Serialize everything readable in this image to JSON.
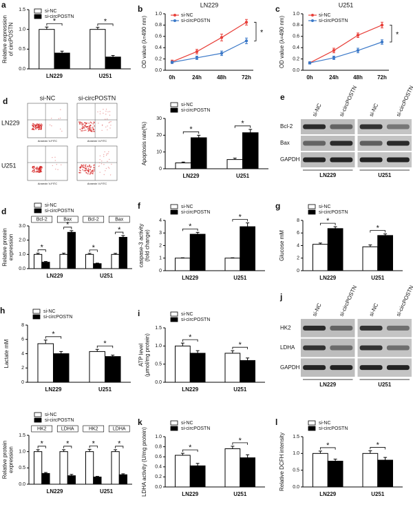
{
  "chart_data": [
    {
      "type": "bar",
      "panel": "a",
      "ylabel": [
        "Relative expression",
        "of circPOSTN"
      ],
      "categories": [
        "LN229",
        "U251"
      ],
      "legend": "upper left",
      "series": [
        {
          "name": "si-NC",
          "color": "#ffffff",
          "values": [
            1.0,
            1.0
          ],
          "errors": [
            0.06,
            0.05
          ]
        },
        {
          "name": "si-circPOSTN",
          "color": "#000000",
          "values": [
            0.4,
            0.3
          ],
          "errors": [
            0.05,
            0.04
          ]
        }
      ],
      "significance": [
        "*",
        "*"
      ],
      "ylim": [
        0,
        1.5
      ],
      "yticks": [
        {
          "value": 0,
          "label": "0.0"
        },
        {
          "value": 0.5,
          "label": "0.5"
        },
        {
          "value": 1,
          "label": "1.0"
        },
        {
          "value": 1.5,
          "label": "1.5"
        }
      ]
    },
    {
      "type": "line",
      "panel": "b",
      "title": "LN229",
      "ylabel": [
        "OD value (λ=490 nm)"
      ],
      "categories": [
        "0h",
        "24h",
        "48h",
        "72h"
      ],
      "legend": "upper left",
      "series": [
        {
          "name": "si-NC",
          "color": "#e8403a",
          "values": [
            0.15,
            0.33,
            0.58,
            0.85
          ],
          "errors": [
            0.03,
            0.04,
            0.06,
            0.05
          ]
        },
        {
          "name": "si-circPOSTN",
          "color": "#3a78c8",
          "values": [
            0.14,
            0.22,
            0.3,
            0.52
          ],
          "errors": [
            0.02,
            0.03,
            0.04,
            0.05
          ]
        }
      ],
      "significance": [
        "*"
      ],
      "ylim": [
        0,
        1.0
      ],
      "yticks": [
        {
          "value": 0,
          "label": "0.0"
        },
        0.2,
        0.4,
        0.6,
        0.8,
        {
          "value": 1,
          "label": "1.0"
        }
      ]
    },
    {
      "type": "line",
      "panel": "c",
      "title": "U251",
      "ylabel": [
        "OD value (λ=490 nm)"
      ],
      "categories": [
        "0h",
        "24h",
        "48h",
        "72h"
      ],
      "legend": "upper left",
      "series": [
        {
          "name": "si-NC",
          "color": "#e8403a",
          "values": [
            0.13,
            0.35,
            0.62,
            0.8
          ],
          "errors": [
            0.02,
            0.04,
            0.04,
            0.05
          ]
        },
        {
          "name": "si-circPOSTN",
          "color": "#3a78c8",
          "values": [
            0.13,
            0.22,
            0.35,
            0.5
          ],
          "errors": [
            0.02,
            0.03,
            0.04,
            0.04
          ]
        }
      ],
      "significance": [
        "*"
      ],
      "ylim": [
        0,
        1.0
      ],
      "yticks": [
        {
          "value": 0,
          "label": "0.0"
        },
        0.2,
        0.4,
        0.6,
        0.8,
        {
          "value": 1,
          "label": "1.0"
        }
      ]
    },
    {
      "type": "bar",
      "ylabel": [
        "Apoptosis rate(%)"
      ],
      "categories": [
        "LN229",
        "U251"
      ],
      "legend": "above",
      "series": [
        {
          "name": "si-NC",
          "color": "#ffffff",
          "values": [
            3.5,
            5.5
          ],
          "errors": [
            0.5,
            0.8
          ]
        },
        {
          "name": "si-circPOSTN",
          "color": "#000000",
          "values": [
            18.5,
            21.5
          ],
          "errors": [
            1.5,
            2
          ]
        }
      ],
      "significance": [
        "*",
        "*"
      ],
      "ylim": [
        0,
        30
      ],
      "yticks": [
        0,
        10,
        20,
        30
      ]
    },
    {
      "type": "bar",
      "panel": "d",
      "ylabel": [
        "Relative protein",
        "expression"
      ],
      "categories": [
        "Bcl-2",
        "Bax",
        "Bcl-2",
        "Bax"
      ],
      "groups": [
        "LN229",
        "U251"
      ],
      "legend": "above",
      "series": [
        {
          "name": "si-NC",
          "color": "#ffffff",
          "values": [
            1.0,
            1.0,
            1.0,
            1.0
          ],
          "errors": [
            0.08,
            0.08,
            0.07,
            0.07
          ]
        },
        {
          "name": "si-circPOSTN",
          "color": "#000000",
          "values": [
            0.45,
            2.55,
            0.35,
            2.2
          ],
          "errors": [
            0.05,
            0.12,
            0.04,
            0.12
          ]
        }
      ],
      "significance": [
        "*",
        "*",
        "*",
        "*"
      ],
      "ylim": [
        0,
        3
      ],
      "yticks": [
        {
          "value": 0,
          "label": "0.0"
        },
        {
          "value": 1,
          "label": "1.0"
        },
        {
          "value": 2,
          "label": "2.0"
        },
        {
          "value": 3,
          "label": "3.0"
        }
      ]
    },
    {
      "type": "bar",
      "panel": "f",
      "ylabel": [
        "caspase-3 activity",
        "(fold change)"
      ],
      "categories": [
        "LN229",
        "U251"
      ],
      "legend": "above",
      "series": [
        {
          "name": "si-NC",
          "color": "#ffffff",
          "values": [
            1.0,
            1.0
          ],
          "errors": [
            0.03,
            0.03
          ]
        },
        {
          "name": "si-circPOSTN",
          "color": "#000000",
          "values": [
            2.9,
            3.5
          ],
          "errors": [
            0.15,
            0.3
          ]
        }
      ],
      "significance": [
        "*",
        "*"
      ],
      "ylim": [
        0,
        4
      ],
      "yticks": [
        0,
        1,
        2,
        3,
        4
      ]
    },
    {
      "type": "bar",
      "panel": "g",
      "ylabel": [
        "Glucose mM"
      ],
      "categories": [
        "LN229",
        "U251"
      ],
      "legend": "above",
      "series": [
        {
          "name": "si-NC",
          "color": "#ffffff",
          "values": [
            4.2,
            3.8
          ],
          "errors": [
            0.2,
            0.3
          ]
        },
        {
          "name": "si-circPOSTN",
          "color": "#000000",
          "values": [
            6.7,
            5.6
          ],
          "errors": [
            0.3,
            0.25
          ]
        }
      ],
      "significance": [
        "*",
        "*"
      ],
      "ylim": [
        0,
        8
      ],
      "yticks": [
        0,
        2,
        4,
        6,
        8
      ]
    },
    {
      "type": "bar",
      "panel": "h",
      "ylabel": [
        "Lactate mM"
      ],
      "categories": [
        "LN229",
        "U251"
      ],
      "legend": "above",
      "series": [
        {
          "name": "si-NC",
          "color": "#ffffff",
          "values": [
            5.4,
            4.3
          ],
          "errors": [
            0.5,
            0.3
          ]
        },
        {
          "name": "si-circPOSTN",
          "color": "#000000",
          "values": [
            4.0,
            3.6
          ],
          "errors": [
            0.3,
            0.2
          ]
        }
      ],
      "significance": [
        "*",
        "*"
      ],
      "ylim": [
        0,
        8
      ],
      "yticks": [
        0,
        2,
        4,
        6,
        8
      ]
    },
    {
      "type": "bar",
      "panel": "i",
      "ylabel": [
        "ATP level",
        "(μmol/mg protein)"
      ],
      "categories": [
        "LN229",
        "U251"
      ],
      "legend": "above",
      "series": [
        {
          "name": "si-NC",
          "color": "#ffffff",
          "values": [
            1.0,
            0.8
          ],
          "errors": [
            0.08,
            0.07
          ]
        },
        {
          "name": "si-circPOSTN",
          "color": "#000000",
          "values": [
            0.8,
            0.6
          ],
          "errors": [
            0.07,
            0.07
          ]
        }
      ],
      "significance": [
        "*",
        "*"
      ],
      "ylim": [
        0,
        1.5
      ],
      "yticks": [
        {
          "value": 0,
          "label": "0.0"
        },
        {
          "value": 0.5,
          "label": "0.5"
        },
        {
          "value": 1,
          "label": "1.0"
        },
        {
          "value": 1.5,
          "label": "1.5"
        }
      ]
    },
    {
      "type": "bar",
      "ylabel": [
        "Relative protein",
        "expression"
      ],
      "categories": [
        "HK2",
        "LDHA",
        "HK2",
        "LDHA"
      ],
      "groups": [
        "LN229",
        "U251"
      ],
      "legend": "above",
      "series": [
        {
          "name": "si-NC",
          "color": "#ffffff",
          "values": [
            1.0,
            1.0,
            1.0,
            1.0
          ],
          "errors": [
            0.06,
            0.06,
            0.07,
            0.06
          ]
        },
        {
          "name": "si-circPOSTN",
          "color": "#000000",
          "values": [
            0.33,
            0.26,
            0.22,
            0.29
          ],
          "errors": [
            0.03,
            0.04,
            0.02,
            0.03
          ]
        }
      ],
      "significance": [
        "*",
        "*",
        "*",
        "*"
      ],
      "ylim": [
        0,
        1.5
      ],
      "yticks": [
        {
          "value": 0,
          "label": "0.0"
        },
        {
          "value": 0.5,
          "label": "0.5"
        },
        {
          "value": 1,
          "label": "1.0"
        },
        {
          "value": 1.5,
          "label": "1.5"
        }
      ]
    },
    {
      "type": "bar",
      "panel": "k",
      "ylabel": [
        "LDHA activity (U/mg protein)"
      ],
      "categories": [
        "LN229",
        "U251"
      ],
      "legend": "above",
      "series": [
        {
          "name": "si-NC",
          "color": "#ffffff",
          "values": [
            0.63,
            0.76
          ],
          "errors": [
            0.04,
            0.05
          ]
        },
        {
          "name": "si-circPOSTN",
          "color": "#000000",
          "values": [
            0.42,
            0.58
          ],
          "errors": [
            0.05,
            0.06
          ]
        }
      ],
      "significance": [
        "*",
        "*"
      ],
      "ylim": [
        0,
        1.0
      ],
      "yticks": [
        {
          "value": 0,
          "label": "0.0"
        },
        0.2,
        0.4,
        0.6,
        0.8,
        {
          "value": 1,
          "label": "1.0"
        }
      ]
    },
    {
      "type": "bar",
      "panel": "l",
      "ylabel": [
        "Relative DCFH intensity"
      ],
      "categories": [
        "LN229",
        "U251"
      ],
      "legend": "above",
      "series": [
        {
          "name": "si-NC",
          "color": "#ffffff",
          "values": [
            1.0,
            1.0
          ],
          "errors": [
            0.07,
            0.08
          ]
        },
        {
          "name": "si-circPOSTN",
          "color": "#000000",
          "values": [
            0.77,
            0.8
          ],
          "errors": [
            0.06,
            0.08
          ]
        }
      ],
      "significance": [
        "*",
        "*"
      ],
      "ylim": [
        0,
        1.5
      ],
      "yticks": [
        {
          "value": 0,
          "label": "0.0"
        },
        {
          "value": 0.5,
          "label": "0.5"
        },
        {
          "value": 1,
          "label": "1.0"
        },
        {
          "value": 1.5,
          "label": "1.5"
        }
      ]
    }
  ],
  "flow": {
    "panel": "d",
    "columns": [
      "si-NC",
      "si-circPOSTN"
    ],
    "rows": [
      "LN229",
      "U251"
    ],
    "axis_label": "Annexin V-FITC"
  },
  "blots": [
    {
      "panel": "e",
      "rows": [
        "Bcl-2",
        "Bax",
        "GAPDH"
      ],
      "columns": [
        "si-NC",
        "si-circPOSTN",
        "si-NC",
        "si-circPOSTN"
      ],
      "groups": [
        "LN229",
        "U251"
      ]
    },
    {
      "panel": "j",
      "rows": [
        "HK2",
        "LDHA",
        "GAPDH"
      ],
      "columns": [
        "si-NC",
        "si-circPOSTN",
        "si-NC",
        "si-circPOSTN"
      ],
      "groups": [
        "LN229",
        "U251"
      ]
    }
  ]
}
